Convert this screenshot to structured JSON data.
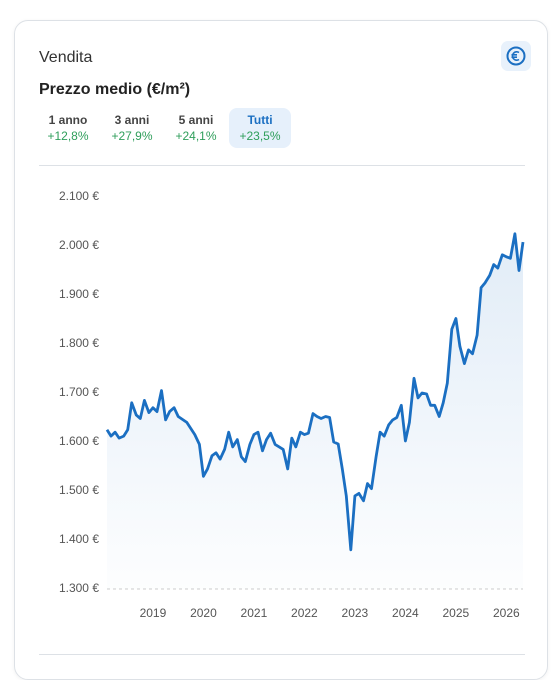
{
  "header": {
    "kicker": "Vendita",
    "title": "Prezzo medio (€/m²)"
  },
  "tabs": [
    {
      "label": "1 anno",
      "change": "+12,8%"
    },
    {
      "label": "3 anni",
      "change": "+27,9%"
    },
    {
      "label": "5 anni",
      "change": "+24,1%"
    },
    {
      "label": "Tutti",
      "change": "+23,5%"
    }
  ],
  "active_tab": 3,
  "chart_data": {
    "type": "line",
    "color": "#1b6fc2",
    "grid": false,
    "x": [
      2018.09,
      2018.17,
      2018.25,
      2018.33,
      2018.42,
      2018.5,
      2018.58,
      2018.67,
      2018.75,
      2018.83,
      2018.92,
      2019.0,
      2019.08,
      2019.17,
      2019.25,
      2019.33,
      2019.42,
      2019.5,
      2019.67,
      2019.83,
      2019.92,
      2020.0,
      2020.08,
      2020.17,
      2020.25,
      2020.33,
      2020.42,
      2020.5,
      2020.58,
      2020.67,
      2020.75,
      2020.83,
      2020.92,
      2021.0,
      2021.08,
      2021.17,
      2021.25,
      2021.33,
      2021.42,
      2021.5,
      2021.58,
      2021.67,
      2021.75,
      2021.83,
      2021.92,
      2022.0,
      2022.08,
      2022.17,
      2022.25,
      2022.33,
      2022.42,
      2022.5,
      2022.58,
      2022.67,
      2022.75,
      2022.83,
      2022.92,
      2023.0,
      2023.08,
      2023.17,
      2023.25,
      2023.33,
      2023.42,
      2023.5,
      2023.58,
      2023.67,
      2023.75,
      2023.83,
      2023.92,
      2024.0,
      2024.08,
      2024.17,
      2024.25,
      2024.33,
      2024.42,
      2024.5,
      2024.58,
      2024.67,
      2024.75,
      2024.83,
      2024.92,
      2025.0,
      2025.08,
      2025.17,
      2025.25,
      2025.33,
      2025.42,
      2025.5,
      2025.58,
      2025.67,
      2025.75,
      2025.83,
      2025.92,
      2026.0,
      2026.08,
      2026.17,
      2026.25,
      2026.33
    ],
    "values": [
      1625,
      1612,
      1620,
      1608,
      1612,
      1625,
      1680,
      1655,
      1648,
      1685,
      1660,
      1670,
      1662,
      1705,
      1645,
      1662,
      1670,
      1652,
      1640,
      1615,
      1595,
      1530,
      1545,
      1572,
      1578,
      1565,
      1585,
      1620,
      1590,
      1605,
      1570,
      1560,
      1595,
      1615,
      1620,
      1582,
      1605,
      1618,
      1595,
      1590,
      1585,
      1545,
      1608,
      1590,
      1620,
      1615,
      1618,
      1658,
      1652,
      1648,
      1652,
      1650,
      1600,
      1596,
      1545,
      1490,
      1380,
      1490,
      1495,
      1480,
      1515,
      1505,
      1570,
      1620,
      1612,
      1635,
      1645,
      1650,
      1675,
      1602,
      1640,
      1730,
      1690,
      1700,
      1698,
      1675,
      1675,
      1652,
      1680,
      1720,
      1830,
      1852,
      1795,
      1760,
      1788,
      1780,
      1818,
      1915,
      1925,
      1940,
      1962,
      1955,
      1982,
      1978,
      1975,
      2025,
      1950,
      2008
    ],
    "xlim": [
      2018.09,
      2026.33
    ],
    "xticks": [
      2019,
      2020,
      2021,
      2022,
      2023,
      2024,
      2025,
      2026
    ],
    "ylim": [
      1300,
      2100
    ],
    "yticks": [
      {
        "value": 1300,
        "label": "1.300 €"
      },
      {
        "value": 1400,
        "label": "1.400 €"
      },
      {
        "value": 1500,
        "label": "1.500 €"
      },
      {
        "value": 1600,
        "label": "1.600 €"
      },
      {
        "value": 1700,
        "label": "1.700 €"
      },
      {
        "value": 1800,
        "label": "1.800 €"
      },
      {
        "value": 1900,
        "label": "1.900 €"
      },
      {
        "value": 2000,
        "label": "2.000 €"
      },
      {
        "value": 2100,
        "label": "2.100 €"
      }
    ]
  }
}
